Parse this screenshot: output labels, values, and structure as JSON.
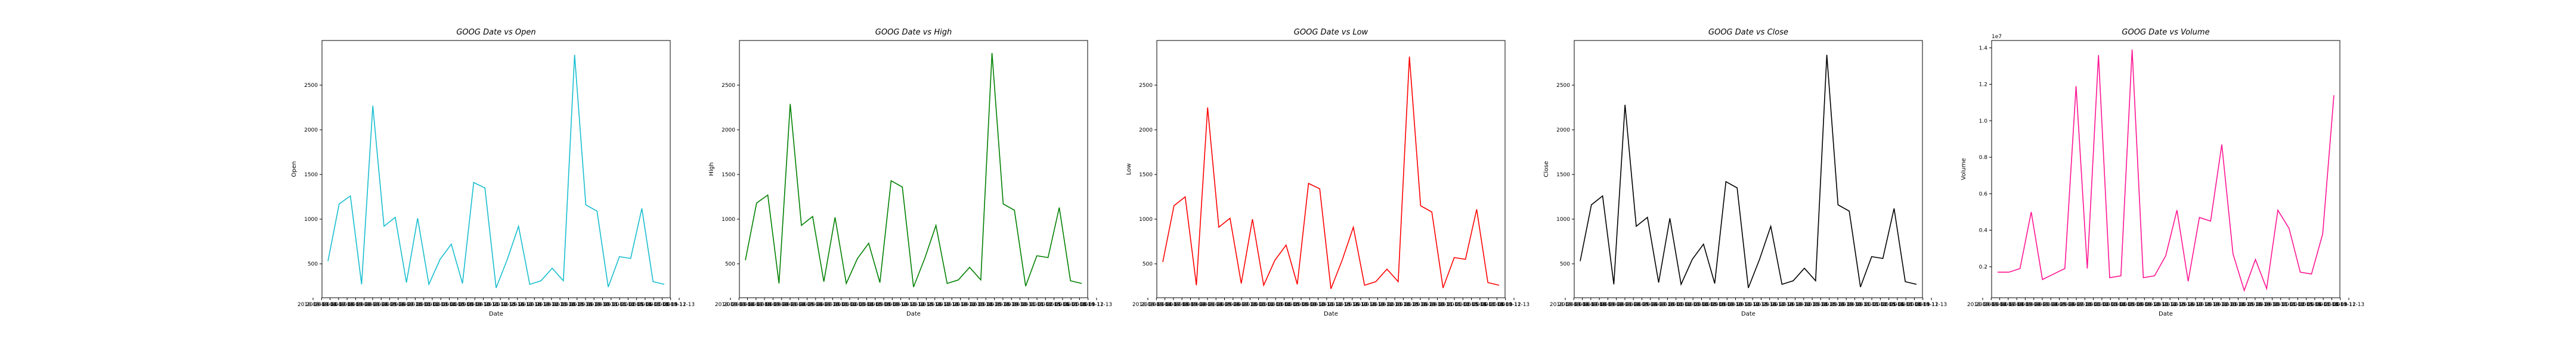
{
  "chart_data": [
    {
      "type": "line",
      "title": "GOOG Date vs Open",
      "xlabel": "Date",
      "ylabel": "Open",
      "color": "#17becf",
      "x_tick_labels": [
        "2018-09-13",
        "2018-09-14",
        "2018-09-17",
        "2018-09-18",
        "2018-09-19",
        "2018-09-20",
        "2018-09-21",
        "2018-09-24",
        "2018-09-25",
        "2018-09-26",
        "2018-09-27",
        "2018-09-28",
        "2018-10-01",
        "2018-10-02",
        "2018-10-03",
        "2018-10-04",
        "2018-10-05",
        "2018-10-08",
        "2018-10-09",
        "2018-10-10",
        "2018-10-11",
        "2018-10-12",
        "2018-10-15",
        "2018-10-16",
        "2018-10-17",
        "2018-10-18",
        "2018-10-19",
        "2018-10-22",
        "2018-10-23",
        "2018-10-24",
        "2018-10-25",
        "2018-10-26",
        "2018-10-29",
        "2018-10-30",
        "2018-10-31",
        "2018-11-01",
        "2018-11-02",
        "2018-11-05",
        "2018-11-06",
        "2018-11-07",
        "2018-11-08",
        "2018-11-09",
        "2018-11-12",
        "2018-11-13"
      ],
      "y_ticks": [
        500,
        1000,
        1500,
        2000,
        2500
      ],
      "ylim": [
        120,
        3000
      ],
      "values": [
        530,
        1170,
        1260,
        270,
        2270,
        920,
        1020,
        290,
        1010,
        270,
        550,
        720,
        280,
        1410,
        1350,
        230,
        550,
        920,
        270,
        310,
        450,
        310,
        2840,
        1160,
        1090,
        240,
        580,
        560,
        1120,
        300,
        270
      ]
    },
    {
      "type": "line",
      "title": "GOOG Date vs High",
      "xlabel": "Date",
      "ylabel": "High",
      "color": "#008000",
      "x_tick_labels": [
        "2018-09-13",
        "2018-09-14",
        "2018-09-17",
        "2018-09-18",
        "2018-09-19",
        "2018-09-20",
        "2018-09-21",
        "2018-09-24",
        "2018-09-25",
        "2018-09-26",
        "2018-09-27",
        "2018-09-28",
        "2018-10-01",
        "2018-10-02",
        "2018-10-03",
        "2018-10-04",
        "2018-10-05",
        "2018-10-08",
        "2018-10-09",
        "2018-10-10",
        "2018-10-11",
        "2018-10-12",
        "2018-10-15",
        "2018-10-16",
        "2018-10-17",
        "2018-10-18",
        "2018-10-19",
        "2018-10-22",
        "2018-10-23",
        "2018-10-24",
        "2018-10-25",
        "2018-10-26",
        "2018-10-29",
        "2018-10-30",
        "2018-10-31",
        "2018-11-01",
        "2018-11-02",
        "2018-11-05",
        "2018-11-06",
        "2018-11-07",
        "2018-11-08",
        "2018-11-09",
        "2018-11-12",
        "2018-11-13"
      ],
      "y_ticks": [
        500,
        1000,
        1500,
        2000,
        2500
      ],
      "ylim": [
        120,
        3000
      ],
      "values": [
        540,
        1180,
        1270,
        280,
        2290,
        930,
        1030,
        300,
        1020,
        280,
        560,
        730,
        290,
        1430,
        1360,
        240,
        560,
        930,
        280,
        320,
        460,
        320,
        2860,
        1170,
        1100,
        250,
        590,
        570,
        1130,
        310,
        280
      ]
    },
    {
      "type": "line",
      "title": "GOOG Date vs Low",
      "xlabel": "Date",
      "ylabel": "Low",
      "color": "#ff0000",
      "x_tick_labels": [
        "2018-09-13",
        "2018-09-14",
        "2018-09-17",
        "2018-09-18",
        "2018-09-19",
        "2018-09-20",
        "2018-09-21",
        "2018-09-24",
        "2018-09-25",
        "2018-09-26",
        "2018-09-27",
        "2018-09-28",
        "2018-10-01",
        "2018-10-02",
        "2018-10-03",
        "2018-10-04",
        "2018-10-05",
        "2018-10-08",
        "2018-10-09",
        "2018-10-10",
        "2018-10-11",
        "2018-10-12",
        "2018-10-15",
        "2018-10-16",
        "2018-10-17",
        "2018-10-18",
        "2018-10-19",
        "2018-10-22",
        "2018-10-23",
        "2018-10-24",
        "2018-10-25",
        "2018-10-26",
        "2018-10-29",
        "2018-10-30",
        "2018-10-31",
        "2018-11-01",
        "2018-11-02",
        "2018-11-05",
        "2018-11-06",
        "2018-11-07",
        "2018-11-08",
        "2018-11-09",
        "2018-11-12",
        "2018-11-13"
      ],
      "y_ticks": [
        500,
        1000,
        1500,
        2000,
        2500
      ],
      "ylim": [
        120,
        3000
      ],
      "values": [
        520,
        1150,
        1250,
        260,
        2250,
        910,
        1010,
        280,
        1000,
        260,
        540,
        710,
        270,
        1400,
        1340,
        220,
        540,
        910,
        260,
        300,
        440,
        300,
        2820,
        1150,
        1080,
        230,
        570,
        550,
        1110,
        290,
        260
      ]
    },
    {
      "type": "line",
      "title": "GOOG Date vs Close",
      "xlabel": "Date",
      "ylabel": "Close",
      "color": "#000000",
      "x_tick_labels": [
        "2018-09-13",
        "2018-09-14",
        "2018-09-17",
        "2018-09-18",
        "2018-09-19",
        "2018-09-20",
        "2018-09-21",
        "2018-09-24",
        "2018-09-25",
        "2018-09-26",
        "2018-09-27",
        "2018-09-28",
        "2018-10-01",
        "2018-10-02",
        "2018-10-03",
        "2018-10-04",
        "2018-10-05",
        "2018-10-08",
        "2018-10-09",
        "2018-10-10",
        "2018-10-11",
        "2018-10-12",
        "2018-10-15",
        "2018-10-16",
        "2018-10-17",
        "2018-10-18",
        "2018-10-19",
        "2018-10-22",
        "2018-10-23",
        "2018-10-24",
        "2018-10-25",
        "2018-10-26",
        "2018-10-29",
        "2018-10-30",
        "2018-10-31",
        "2018-11-01",
        "2018-11-02",
        "2018-11-05",
        "2018-11-06",
        "2018-11-07",
        "2018-11-08",
        "2018-11-09",
        "2018-11-12",
        "2018-11-13"
      ],
      "y_ticks": [
        500,
        1000,
        1500,
        2000,
        2500
      ],
      "ylim": [
        120,
        3000
      ],
      "values": [
        530,
        1160,
        1260,
        270,
        2280,
        920,
        1020,
        290,
        1010,
        270,
        550,
        720,
        280,
        1420,
        1350,
        230,
        550,
        920,
        270,
        310,
        450,
        310,
        2840,
        1160,
        1090,
        240,
        580,
        560,
        1120,
        300,
        270
      ]
    },
    {
      "type": "line",
      "title": "GOOG Date vs Volume",
      "xlabel": "Date",
      "ylabel": "Volume",
      "color": "#ff1493",
      "offset_text": "1e7",
      "x_tick_labels": [
        "2018-09-13",
        "2018-09-14",
        "2018-09-17",
        "2018-09-18",
        "2018-09-19",
        "2018-09-20",
        "2018-09-21",
        "2018-09-24",
        "2018-09-25",
        "2018-09-26",
        "2018-09-27",
        "2018-09-28",
        "2018-10-01",
        "2018-10-02",
        "2018-10-03",
        "2018-10-04",
        "2018-10-05",
        "2018-10-08",
        "2018-10-09",
        "2018-10-10",
        "2018-10-11",
        "2018-10-12",
        "2018-10-15",
        "2018-10-16",
        "2018-10-17",
        "2018-10-18",
        "2018-10-19",
        "2018-10-22",
        "2018-10-23",
        "2018-10-24",
        "2018-10-25",
        "2018-10-26",
        "2018-10-29",
        "2018-10-30",
        "2018-10-31",
        "2018-11-01",
        "2018-11-02",
        "2018-11-05",
        "2018-11-06",
        "2018-11-07",
        "2018-11-08",
        "2018-11-09",
        "2018-11-12",
        "2018-11-13"
      ],
      "y_ticks": [
        0.2,
        0.4,
        0.6,
        0.8,
        1.0,
        1.2,
        1.4
      ],
      "ylim": [
        0.03,
        1.44
      ],
      "values": [
        0.17,
        0.17,
        0.19,
        0.5,
        0.13,
        0.16,
        0.19,
        1.19,
        0.19,
        1.36,
        0.14,
        0.15,
        1.39,
        0.14,
        0.15,
        0.26,
        0.51,
        0.12,
        0.47,
        0.45,
        0.87,
        0.27,
        0.07,
        0.24,
        0.08,
        0.51,
        0.41,
        0.17,
        0.16,
        0.38,
        1.14
      ]
    }
  ]
}
